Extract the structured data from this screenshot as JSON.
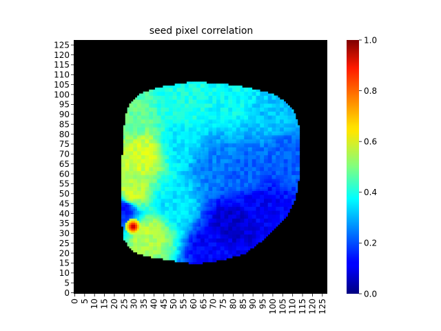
{
  "chart_data": {
    "type": "heatmap",
    "title": "seed pixel correlation",
    "xlabel": "",
    "ylabel": "",
    "grid_size": 128,
    "x_ticks": [
      "0",
      "5",
      "10",
      "15",
      "20",
      "25",
      "30",
      "35",
      "40",
      "45",
      "50",
      "55",
      "60",
      "65",
      "70",
      "75",
      "80",
      "85",
      "90",
      "95",
      "100",
      "105",
      "110",
      "115",
      "120",
      "125"
    ],
    "y_ticks": [
      "0",
      "5",
      "10",
      "15",
      "20",
      "25",
      "30",
      "35",
      "40",
      "45",
      "50",
      "55",
      "60",
      "65",
      "70",
      "75",
      "80",
      "85",
      "90",
      "95",
      "100",
      "105",
      "110",
      "115",
      "120",
      "125"
    ],
    "y_axis_origin": "bottom",
    "colormap": "jet",
    "background_color": "#000000",
    "colorbar": {
      "min": 0.0,
      "max": 1.0,
      "ticks": [
        "0.0",
        "0.2",
        "0.4",
        "0.6",
        "0.8",
        "1.0"
      ]
    },
    "seed_pixel": {
      "x": 30,
      "y": 34,
      "value": 1.0
    },
    "region_boundary": [
      [
        25,
        28
      ],
      [
        24,
        40
      ],
      [
        24,
        60
      ],
      [
        25,
        80
      ],
      [
        26,
        90
      ],
      [
        29,
        97
      ],
      [
        34,
        101
      ],
      [
        42,
        104
      ],
      [
        60,
        107
      ],
      [
        75,
        106
      ],
      [
        88,
        104
      ],
      [
        100,
        101
      ],
      [
        107,
        97
      ],
      [
        111,
        92
      ],
      [
        114,
        84
      ],
      [
        114,
        60
      ],
      [
        112,
        48
      ],
      [
        107,
        38
      ],
      [
        101,
        32
      ],
      [
        94,
        26
      ],
      [
        86,
        20
      ],
      [
        75,
        17
      ],
      [
        62,
        15
      ],
      [
        48,
        17
      ],
      [
        36,
        19
      ],
      [
        29,
        22
      ]
    ],
    "value_field_anchors": [
      {
        "x": 34,
        "y": 70,
        "v": 0.58
      },
      {
        "x": 29,
        "y": 50,
        "v": 0.57
      },
      {
        "x": 38,
        "y": 30,
        "v": 0.55
      },
      {
        "x": 28,
        "y": 88,
        "v": 0.47
      },
      {
        "x": 55,
        "y": 96,
        "v": 0.4
      },
      {
        "x": 80,
        "y": 98,
        "v": 0.38
      },
      {
        "x": 100,
        "y": 90,
        "v": 0.32
      },
      {
        "x": 108,
        "y": 70,
        "v": 0.22
      },
      {
        "x": 88,
        "y": 60,
        "v": 0.22
      },
      {
        "x": 70,
        "y": 65,
        "v": 0.25
      },
      {
        "x": 80,
        "y": 35,
        "v": 0.08
      },
      {
        "x": 95,
        "y": 45,
        "v": 0.12
      },
      {
        "x": 70,
        "y": 22,
        "v": 0.12
      },
      {
        "x": 50,
        "y": 45,
        "v": 0.35
      },
      {
        "x": 55,
        "y": 75,
        "v": 0.35
      },
      {
        "x": 25,
        "y": 43,
        "v": 0.15
      }
    ]
  }
}
